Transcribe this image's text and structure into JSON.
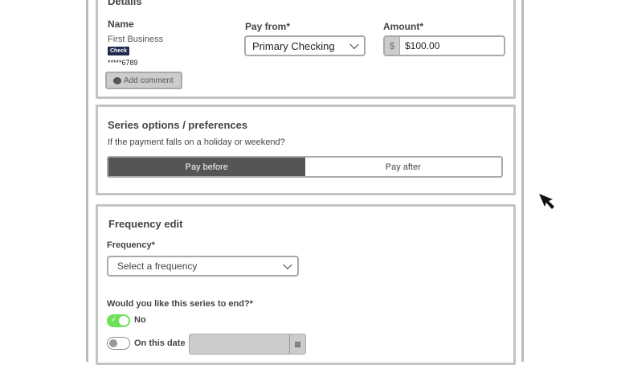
{
  "details": {
    "title": "Details",
    "name_label": "Name",
    "payee_name": "First Business",
    "payee_badge": "Check",
    "account_masked": "*****6789",
    "add_comment": "Add comment",
    "pay_from_label": "Pay from*",
    "pay_from_value": "Primary Checking",
    "amount_label": "Amount*",
    "currency_symbol": "$",
    "amount_value": "$100.00"
  },
  "series": {
    "title": "Series options / preferences",
    "question": "If the payment falls on a holiday or weekend?",
    "options": [
      "Pay before",
      "Pay after"
    ],
    "selected": "Pay before"
  },
  "frequency": {
    "title": "Frequency edit",
    "frequency_label": "Frequency*",
    "frequency_placeholder": "Select a frequency",
    "end_question": "Would you like this series to end?*",
    "end_options": [
      {
        "label": "No",
        "on": true
      },
      {
        "label": "On this date",
        "on": false
      }
    ]
  },
  "colors": {
    "toggle_on": "#6ee05a",
    "segment_selected": "#555555",
    "badge": "#1f2a4d"
  }
}
